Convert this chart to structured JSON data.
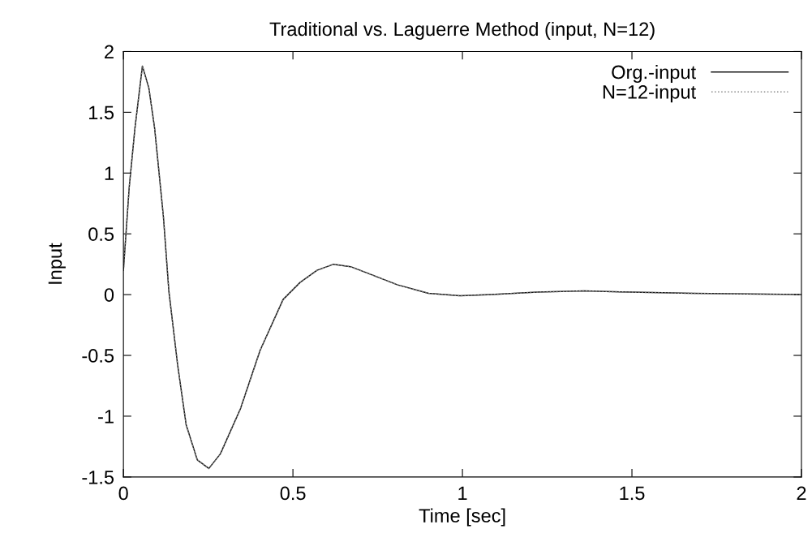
{
  "chart_data": {
    "type": "line",
    "title": "Traditional vs. Laguerre Method (input, N=12)",
    "xlabel": "Time [sec]",
    "ylabel": "Input",
    "x": [
      0,
      0.008,
      0.017,
      0.034,
      0.056,
      0.075,
      0.092,
      0.118,
      0.134,
      0.16,
      0.185,
      0.218,
      0.252,
      0.286,
      0.345,
      0.403,
      0.471,
      0.521,
      0.571,
      0.62,
      0.67,
      0.717,
      0.809,
      0.9,
      0.993,
      1.085,
      1.22,
      1.36,
      1.5,
      1.68,
      2
    ],
    "series": [
      {
        "name": "Org.-input",
        "color": "#1a1a1a",
        "line_style": "solid",
        "values": [
          0.2,
          0.52,
          0.88,
          1.37,
          1.88,
          1.7,
          1.37,
          0.64,
          0.03,
          -0.58,
          -1.07,
          -1.36,
          -1.43,
          -1.31,
          -0.94,
          -0.46,
          -0.04,
          0.1,
          0.2,
          0.25,
          0.23,
          0.18,
          0.08,
          0.01,
          -0.01,
          0.0,
          0.02,
          0.03,
          0.02,
          0.01,
          0.0
        ]
      },
      {
        "name": "N=12-input",
        "color": "#888888",
        "line_style": "dotted",
        "values": [
          0.2,
          0.52,
          0.88,
          1.37,
          1.88,
          1.7,
          1.37,
          0.64,
          0.03,
          -0.58,
          -1.07,
          -1.36,
          -1.43,
          -1.31,
          -0.94,
          -0.46,
          -0.04,
          0.1,
          0.2,
          0.25,
          0.23,
          0.18,
          0.08,
          0.01,
          -0.01,
          0.0,
          0.02,
          0.03,
          0.02,
          0.01,
          0.0
        ]
      }
    ],
    "xlim": [
      0,
      2
    ],
    "xticks": [
      0,
      0.5,
      1,
      1.5,
      2
    ],
    "ylim": [
      -1.5,
      2
    ],
    "yticks": [
      -1.5,
      -1,
      -0.5,
      0,
      0.5,
      1,
      1.5,
      2
    ],
    "grid": false,
    "legend": "top right"
  }
}
